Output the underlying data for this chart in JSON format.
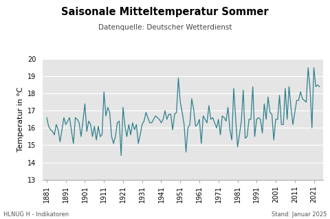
{
  "title": "Saisonale Mitteltemperatur Sommer",
  "subtitle": "Datenquelle: Deutscher Wetterdienst",
  "ylabel": "Temperatur in °C",
  "footer_left": "HLNUG H - Indikatoren",
  "footer_right": "Stand: Januar 2025",
  "line_color": "#2e7f8c",
  "plot_bg_color": "#e5e5e5",
  "fig_bg_color": "#ffffff",
  "grid_color": "#ffffff",
  "spine_color": "#aaaaaa",
  "ylim": [
    13,
    20
  ],
  "yticks": [
    13,
    14,
    15,
    16,
    17,
    18,
    19,
    20
  ],
  "xtick_years": [
    1881,
    1891,
    1901,
    1911,
    1921,
    1931,
    1941,
    1951,
    1961,
    1971,
    1981,
    1991,
    2001,
    2011,
    2021
  ],
  "xlim": [
    1879,
    2026
  ],
  "years": [
    1881,
    1882,
    1883,
    1884,
    1885,
    1886,
    1887,
    1888,
    1889,
    1890,
    1891,
    1892,
    1893,
    1894,
    1895,
    1896,
    1897,
    1898,
    1899,
    1900,
    1901,
    1902,
    1903,
    1904,
    1905,
    1906,
    1907,
    1908,
    1909,
    1910,
    1911,
    1912,
    1913,
    1914,
    1915,
    1916,
    1917,
    1918,
    1919,
    1920,
    1921,
    1922,
    1923,
    1924,
    1925,
    1926,
    1927,
    1928,
    1929,
    1930,
    1931,
    1932,
    1933,
    1934,
    1935,
    1936,
    1937,
    1938,
    1939,
    1940,
    1941,
    1942,
    1943,
    1944,
    1945,
    1946,
    1947,
    1948,
    1949,
    1950,
    1951,
    1952,
    1953,
    1954,
    1955,
    1956,
    1957,
    1958,
    1959,
    1960,
    1961,
    1962,
    1963,
    1964,
    1965,
    1966,
    1967,
    1968,
    1969,
    1970,
    1971,
    1972,
    1973,
    1974,
    1975,
    1976,
    1977,
    1978,
    1979,
    1980,
    1981,
    1982,
    1983,
    1984,
    1985,
    1986,
    1987,
    1988,
    1989,
    1990,
    1991,
    1992,
    1993,
    1994,
    1995,
    1996,
    1997,
    1998,
    1999,
    2000,
    2001,
    2002,
    2003,
    2004,
    2005,
    2006,
    2007,
    2008,
    2009,
    2010,
    2011,
    2012,
    2013,
    2014,
    2015,
    2016,
    2017,
    2018,
    2019,
    2020,
    2021,
    2022,
    2023,
    2024
  ],
  "temps": [
    16.6,
    16.1,
    15.9,
    15.8,
    15.6,
    16.2,
    15.9,
    15.2,
    15.9,
    16.6,
    16.2,
    16.4,
    16.6,
    15.8,
    15.1,
    16.6,
    16.5,
    16.3,
    15.5,
    16.4,
    17.4,
    15.8,
    16.4,
    16.2,
    15.5,
    16.1,
    15.3,
    16.1,
    15.5,
    15.6,
    18.1,
    16.7,
    17.2,
    16.9,
    15.5,
    15.1,
    15.5,
    16.3,
    16.4,
    14.4,
    17.2,
    16.1,
    15.5,
    16.2,
    15.6,
    16.3,
    15.9,
    16.2,
    15.1,
    15.6,
    16.2,
    16.4,
    16.9,
    16.6,
    16.3,
    16.3,
    16.5,
    16.7,
    16.6,
    16.5,
    16.3,
    16.5,
    17.0,
    16.5,
    16.8,
    16.8,
    15.9,
    16.8,
    16.9,
    18.9,
    17.5,
    16.9,
    16.2,
    14.6,
    16.0,
    16.2,
    17.7,
    17.1,
    16.1,
    16.2,
    16.5,
    15.1,
    16.7,
    16.5,
    16.3,
    17.3,
    16.5,
    16.6,
    16.3,
    16.0,
    16.5,
    15.6,
    16.7,
    16.6,
    16.4,
    17.2,
    15.9,
    15.3,
    18.3,
    16.6,
    14.9,
    15.6,
    16.4,
    18.2,
    15.4,
    15.5,
    16.5,
    16.5,
    18.4,
    15.5,
    16.5,
    16.6,
    16.5,
    15.7,
    17.4,
    16.5,
    17.8,
    16.9,
    16.8,
    15.3,
    16.5,
    16.5,
    17.9,
    16.2,
    16.2,
    18.3,
    16.5,
    18.4,
    17.2,
    16.2,
    16.9,
    17.6,
    17.6,
    18.1,
    17.7,
    17.6,
    17.5,
    19.5,
    18.3,
    16.0,
    19.5,
    18.4,
    18.5,
    18.4
  ]
}
